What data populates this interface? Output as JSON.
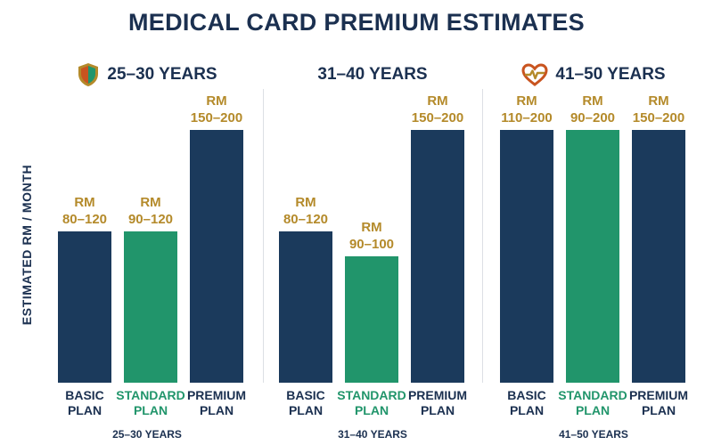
{
  "title": "MEDICAL CARD PREMIUM ESTIMATES",
  "colors": {
    "basic": "#1b3a5c",
    "standard": "#21956b",
    "premium": "#1b3a5c",
    "value_label": "#b48a2a",
    "text": "#1b3050"
  },
  "chart_data": {
    "type": "bar",
    "title": "MEDICAL CARD PREMIUM ESTIMATES",
    "ylabel": "ESTIMATED RM / MONTH",
    "grid": false,
    "legend": "none",
    "groups": [
      {
        "header": "25–30 YEARS",
        "header_icon": "shield-icon",
        "footer": "25–30 YEARS",
        "bars": [
          {
            "plan": [
              "BASIC",
              "PLAN"
            ],
            "kind": "basic",
            "label": [
              "RM",
              "80–120"
            ],
            "range": [
              80,
              120
            ]
          },
          {
            "plan": [
              "STANDARD",
              "PLAN"
            ],
            "kind": "standard",
            "label": [
              "RM",
              "90–120"
            ],
            "range": [
              90,
              120
            ]
          },
          {
            "plan": [
              "PREMIUM",
              "PLAN"
            ],
            "kind": "premium",
            "label": [
              "RM",
              "150–200"
            ],
            "range": [
              150,
              200
            ]
          }
        ]
      },
      {
        "header": "31–40 YEARS",
        "header_icon": "",
        "footer": "31–40 YEARS",
        "bars": [
          {
            "plan": [
              "BASIC",
              "PLAN"
            ],
            "kind": "basic",
            "label": [
              "RM",
              "80–120"
            ],
            "range": [
              80,
              120
            ]
          },
          {
            "plan": [
              "STANDARD",
              "PLAN"
            ],
            "kind": "standard",
            "label": [
              "RM",
              "90–100"
            ],
            "range": [
              90,
              100
            ]
          },
          {
            "plan": [
              "PREMIUM",
              "PLAN"
            ],
            "kind": "premium",
            "label": [
              "RM",
              "150–200"
            ],
            "range": [
              150,
              200
            ]
          }
        ]
      },
      {
        "header": "41–50 YEARS",
        "header_icon": "heart-pulse-icon",
        "footer": "41–50 YEARS",
        "bars": [
          {
            "plan": [
              "BASIC",
              "PLAN"
            ],
            "kind": "basic",
            "label": [
              "RM",
              "110–200"
            ],
            "range": [
              110,
              200
            ]
          },
          {
            "plan": [
              "STANDARD",
              "PLAN"
            ],
            "kind": "standard",
            "label": [
              "RM",
              "90–200"
            ],
            "range": [
              90,
              200
            ]
          },
          {
            "plan": [
              "PREMIUM",
              "PLAN"
            ],
            "kind": "premium",
            "label": [
              "RM",
              "150–200"
            ],
            "range": [
              150,
              200
            ]
          }
        ]
      }
    ]
  }
}
